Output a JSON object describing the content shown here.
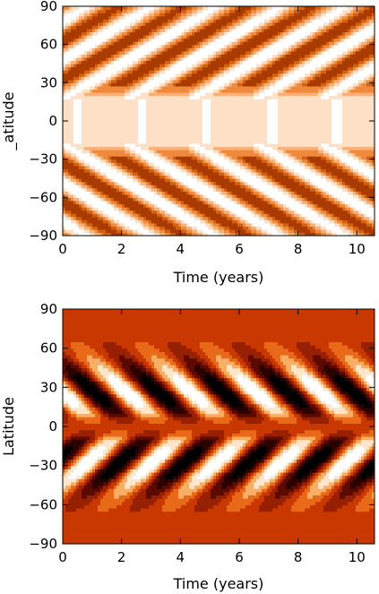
{
  "chart_data": [
    {
      "type": "heatmap",
      "panel": "top",
      "xlabel": "Time (years)",
      "ylabel": "_atitude",
      "xlim": [
        0,
        10.6
      ],
      "ylim": [
        -90,
        90
      ],
      "xticks": [
        0,
        2,
        4,
        6,
        8,
        10
      ],
      "yticks": [
        -90,
        -60,
        -30,
        0,
        30,
        60,
        90
      ],
      "colormap": [
        "#ffffff",
        "#fde0c6",
        "#f9b07a",
        "#ef8a3c",
        "#d2620e",
        "#a93a00"
      ],
      "cycle_period_years": 2.2,
      "first_peak_time_years": 1.6,
      "peak_latitude_deg": 55,
      "band_drift_deg_per_year": -14,
      "white_band_latitude_deg": 18,
      "equatorial_level": "light"
    },
    {
      "type": "heatmap",
      "panel": "bottom",
      "xlabel": "Time (years)",
      "ylabel": "Latitude",
      "xlim": [
        0,
        10.6
      ],
      "ylim": [
        -90,
        90
      ],
      "xticks": [
        0,
        2,
        4,
        6,
        8,
        10
      ],
      "yticks": [
        -90,
        -60,
        -30,
        0,
        30,
        60,
        90
      ],
      "colormap": [
        "#000000",
        "#2a0300",
        "#5c0a00",
        "#962000",
        "#c83800",
        "#e86a18",
        "#f9ae66",
        "#fde6cc",
        "#ffffff"
      ],
      "background_color": "#b12e05",
      "contours": "black",
      "cycle_period_years": 2.2,
      "peak_latitude_deg": 27,
      "extrema_times_north": [
        1.6,
        3.4,
        5.6,
        7.6,
        9.3
      ],
      "extrema_times_south": [
        1.4,
        3.3,
        5.2,
        7.3,
        9.2
      ]
    }
  ]
}
